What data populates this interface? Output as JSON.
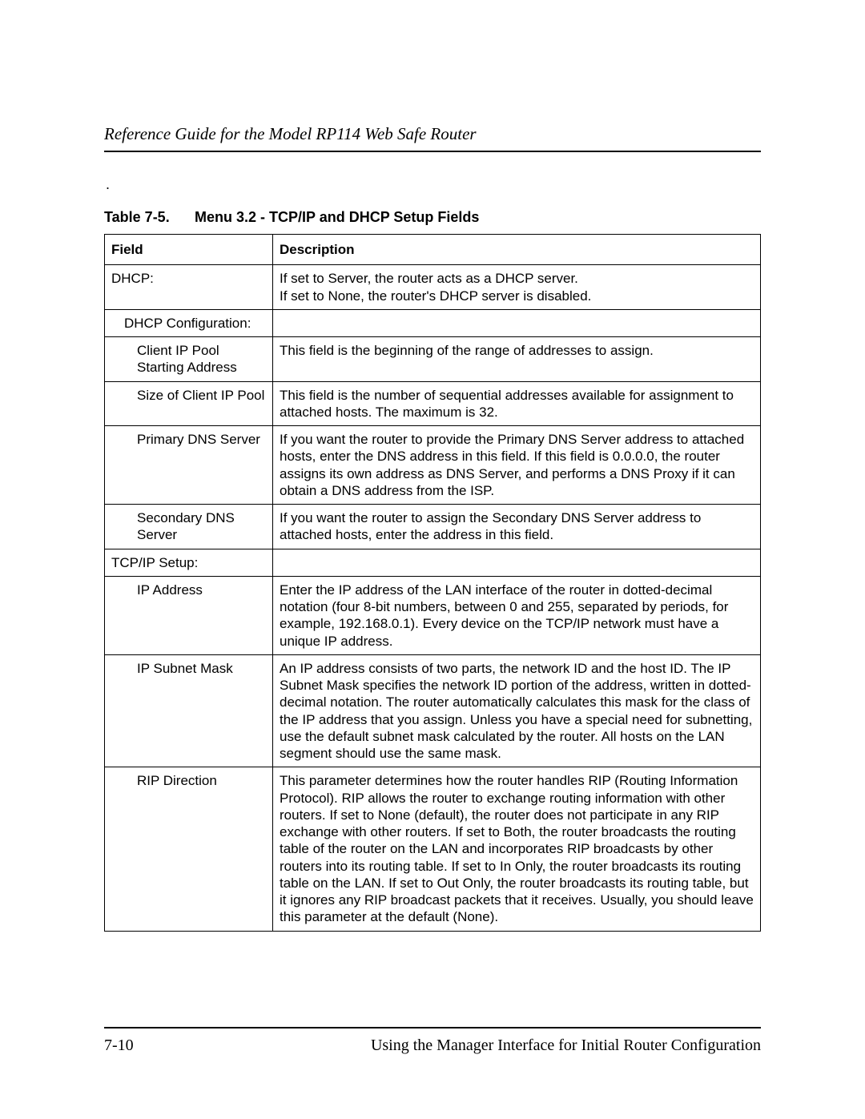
{
  "header": {
    "running_title": "Reference Guide for the Model RP114 Web Safe Router"
  },
  "caption": {
    "number": "Table 7-5.",
    "title": "Menu 3.2 - TCP/IP and DHCP Setup Fields"
  },
  "table": {
    "head_field": "Field",
    "head_desc": "Description",
    "rows": [
      {
        "field": "DHCP:",
        "indent": 0,
        "desc": "If set to Server, the router acts as a DHCP server.\nIf set to None, the router's DHCP server is disabled."
      },
      {
        "field": "DHCP Configuration:",
        "indent": 1,
        "desc": ""
      },
      {
        "field": "Client IP Pool Starting Address",
        "indent": 2,
        "desc": "This field is the beginning of the range of addresses to assign."
      },
      {
        "field": "Size of Client IP Pool",
        "indent": 2,
        "desc": "This field is the number of sequential addresses available for assignment to attached hosts. The maximum is 32."
      },
      {
        "field": "Primary DNS Server",
        "indent": 2,
        "desc": "If you want the router to provide the Primary DNS Server address to attached hosts, enter the DNS address in this field. If this field is 0.0.0.0, the router assigns its own address as DNS Server, and performs a DNS Proxy if it can obtain a DNS address from the ISP."
      },
      {
        "field": "Secondary DNS Server",
        "indent": 2,
        "desc": "If you want the router to assign the Secondary DNS Server address to attached hosts, enter the address in this field."
      },
      {
        "field": "TCP/IP Setup:",
        "indent": 0,
        "desc": ""
      },
      {
        "field": "IP Address",
        "indent": 2,
        "desc": "Enter the IP address of the LAN interface of the router in dotted-decimal notation (four 8-bit numbers, between 0 and 255, separated by periods, for example, 192.168.0.1). Every device on the TCP/IP network must have a unique IP address."
      },
      {
        "field": "IP Subnet Mask",
        "indent": 2,
        "desc": "An IP address consists of two parts, the network ID and the host ID. The IP Subnet Mask specifies the network ID portion of the address, written in dotted-decimal notation. The router automatically calculates this mask for the class of the IP address that you assign. Unless you have a special need for subnetting, use the default subnet mask calculated by the router. All hosts on the LAN segment should use the same mask."
      },
      {
        "field": "RIP Direction",
        "indent": 2,
        "desc": "This parameter determines how the router handles RIP (Routing Information Protocol). RIP allows the router to exchange routing information with other routers. If set to None (default), the router does not participate in any RIP exchange with other routers. If set to Both, the router broadcasts the routing table of the router on the LAN and incorporates RIP broadcasts by other routers into its routing table. If set to In Only, the router broadcasts its routing table on the LAN. If set to Out Only, the router broadcasts its routing table, but it ignores any RIP broadcast packets that it receives. Usually, you should leave this parameter at the default (None)."
      }
    ]
  },
  "footer": {
    "page_num": "7-10",
    "section": "Using the Manager Interface for Initial Router Configuration"
  }
}
